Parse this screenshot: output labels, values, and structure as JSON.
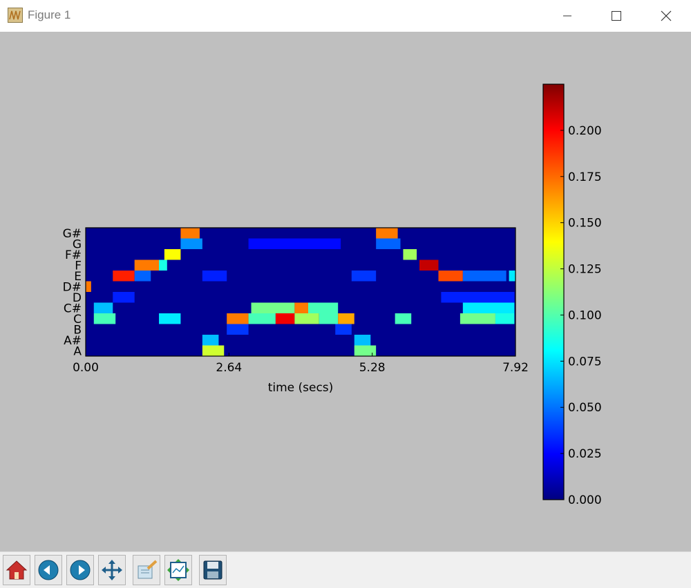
{
  "window": {
    "title": "Figure 1",
    "controls": {
      "minimize": "minimize",
      "maximize": "maximize",
      "close": "close"
    }
  },
  "toolbar": {
    "buttons": [
      {
        "name": "home",
        "icon": "home-icon"
      },
      {
        "name": "back",
        "icon": "arrow-left-icon"
      },
      {
        "name": "forward",
        "icon": "arrow-right-icon"
      },
      {
        "name": "pan",
        "icon": "move-icon"
      },
      {
        "name": "zoom",
        "icon": "zoom-rect-icon"
      },
      {
        "name": "configure-subplots",
        "icon": "subplots-icon"
      },
      {
        "name": "save",
        "icon": "floppy-disk-icon"
      }
    ]
  },
  "chart_data": {
    "type": "heatmap",
    "colormap": "jet",
    "xlabel": "time (secs)",
    "xticks": [
      "0.00",
      "2.64",
      "5.28",
      "7.92"
    ],
    "xlim": [
      0,
      7.92
    ],
    "yticks": [
      "A",
      "A#",
      "B",
      "C",
      "C#",
      "D",
      "D#",
      "E",
      "F",
      "F#",
      "G",
      "G#"
    ],
    "colorbar": {
      "ticks": [
        "0.000",
        "0.025",
        "0.050",
        "0.075",
        "0.100",
        "0.125",
        "0.150",
        "0.175",
        "0.200"
      ],
      "range": [
        0,
        0.225
      ]
    },
    "segments": [
      {
        "pitch": "A",
        "start": 2.15,
        "end": 2.55,
        "value": 0.13
      },
      {
        "pitch": "A",
        "start": 4.95,
        "end": 5.35,
        "value": 0.11
      },
      {
        "pitch": "A#",
        "start": 2.15,
        "end": 2.45,
        "value": 0.07
      },
      {
        "pitch": "A#",
        "start": 4.95,
        "end": 5.25,
        "value": 0.07
      },
      {
        "pitch": "B",
        "start": 2.6,
        "end": 3.0,
        "value": 0.04
      },
      {
        "pitch": "B",
        "start": 4.6,
        "end": 4.9,
        "value": 0.04
      },
      {
        "pitch": "C",
        "start": 0.15,
        "end": 0.55,
        "value": 0.1
      },
      {
        "pitch": "C",
        "start": 1.35,
        "end": 1.75,
        "value": 0.08
      },
      {
        "pitch": "C",
        "start": 2.6,
        "end": 3.0,
        "value": 0.17
      },
      {
        "pitch": "C",
        "start": 3.0,
        "end": 3.5,
        "value": 0.1
      },
      {
        "pitch": "C",
        "start": 3.5,
        "end": 3.85,
        "value": 0.2
      },
      {
        "pitch": "C",
        "start": 3.85,
        "end": 4.3,
        "value": 0.12
      },
      {
        "pitch": "C",
        "start": 4.3,
        "end": 4.65,
        "value": 0.1
      },
      {
        "pitch": "C",
        "start": 4.65,
        "end": 4.95,
        "value": 0.16
      },
      {
        "pitch": "C",
        "start": 5.7,
        "end": 6.0,
        "value": 0.1
      },
      {
        "pitch": "C",
        "start": 6.9,
        "end": 7.55,
        "value": 0.11
      },
      {
        "pitch": "C",
        "start": 7.55,
        "end": 7.9,
        "value": 0.09
      },
      {
        "pitch": "C#",
        "start": 0.15,
        "end": 0.5,
        "value": 0.07
      },
      {
        "pitch": "C#",
        "start": 3.05,
        "end": 3.85,
        "value": 0.11
      },
      {
        "pitch": "C#",
        "start": 3.85,
        "end": 4.1,
        "value": 0.17
      },
      {
        "pitch": "C#",
        "start": 4.1,
        "end": 4.65,
        "value": 0.1
      },
      {
        "pitch": "C#",
        "start": 6.95,
        "end": 7.9,
        "value": 0.08
      },
      {
        "pitch": "D",
        "start": 0.5,
        "end": 0.9,
        "value": 0.035
      },
      {
        "pitch": "D",
        "start": 6.55,
        "end": 7.9,
        "value": 0.035
      },
      {
        "pitch": "D#",
        "start": 0.0,
        "end": 0.1,
        "value": 0.17
      },
      {
        "pitch": "E",
        "start": 0.5,
        "end": 0.9,
        "value": 0.19
      },
      {
        "pitch": "E",
        "start": 0.9,
        "end": 1.2,
        "value": 0.05
      },
      {
        "pitch": "E",
        "start": 2.15,
        "end": 2.6,
        "value": 0.035
      },
      {
        "pitch": "E",
        "start": 4.9,
        "end": 5.35,
        "value": 0.04
      },
      {
        "pitch": "E",
        "start": 6.5,
        "end": 6.95,
        "value": 0.18
      },
      {
        "pitch": "E",
        "start": 6.95,
        "end": 7.75,
        "value": 0.05
      },
      {
        "pitch": "E",
        "start": 7.8,
        "end": 7.92,
        "value": 0.08
      },
      {
        "pitch": "F",
        "start": 0.9,
        "end": 1.35,
        "value": 0.17
      },
      {
        "pitch": "F",
        "start": 1.35,
        "end": 1.5,
        "value": 0.09
      },
      {
        "pitch": "F",
        "start": 6.15,
        "end": 6.5,
        "value": 0.21
      },
      {
        "pitch": "F#",
        "start": 1.45,
        "end": 1.75,
        "value": 0.14
      },
      {
        "pitch": "F#",
        "start": 5.85,
        "end": 6.1,
        "value": 0.12
      },
      {
        "pitch": "G",
        "start": 1.75,
        "end": 2.15,
        "value": 0.06
      },
      {
        "pitch": "G",
        "start": 3.0,
        "end": 4.7,
        "value": 0.03
      },
      {
        "pitch": "G",
        "start": 5.35,
        "end": 5.8,
        "value": 0.05
      },
      {
        "pitch": "G#",
        "start": 1.75,
        "end": 2.1,
        "value": 0.17
      },
      {
        "pitch": "G#",
        "start": 5.35,
        "end": 5.75,
        "value": 0.17
      }
    ]
  }
}
